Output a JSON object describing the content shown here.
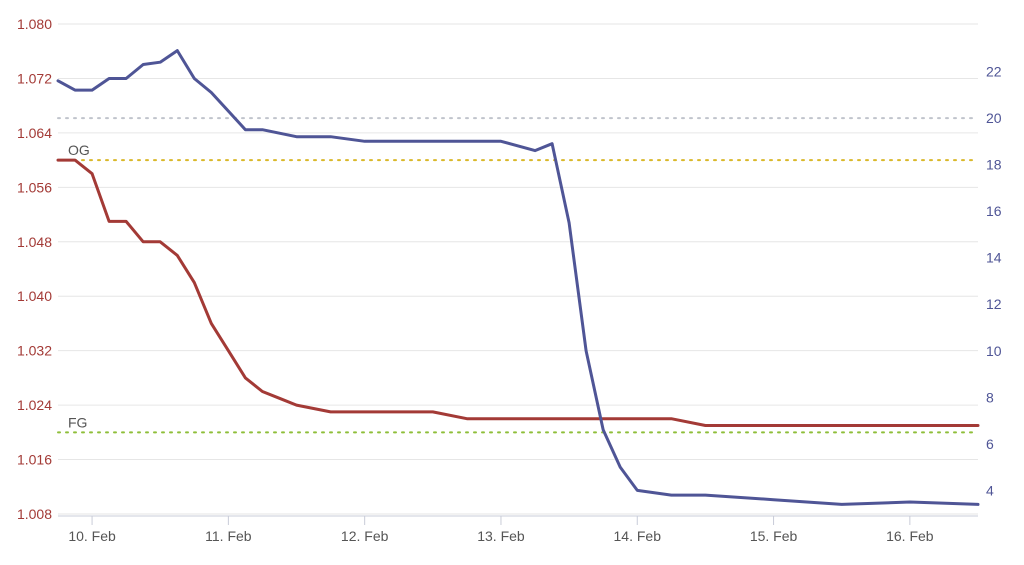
{
  "chart_data": {
    "type": "line",
    "title": "",
    "xlabel": "",
    "ylabel_left": "",
    "ylabel_right": "",
    "x_domain_days": [
      "2024-02-09T18:00",
      "2024-02-16T12:00"
    ],
    "x_tick_labels": [
      "10. Feb",
      "11. Feb",
      "12. Feb",
      "13. Feb",
      "14. Feb",
      "15. Feb",
      "16. Feb"
    ],
    "y_left": {
      "range": [
        1.008,
        1.08
      ],
      "ticks": [
        "1.080",
        "1.072",
        "1.064",
        "1.056",
        "1.048",
        "1.040",
        "1.032",
        "1.024",
        "1.016",
        "1.008"
      ],
      "color": "#a33a36"
    },
    "y_right": {
      "range": [
        2.9,
        24.3
      ],
      "ticks": [
        "22",
        "20",
        "18",
        "16",
        "14",
        "12",
        "10",
        "8",
        "6",
        "4"
      ],
      "color": "#4f5596"
    },
    "grid": true,
    "reference_lines": [
      {
        "label": "OG",
        "axis": "left",
        "value": 1.06,
        "color": "#d9b82a"
      },
      {
        "label": "FG",
        "axis": "left",
        "value": 1.02,
        "color": "#8fbf3a"
      },
      {
        "label": "",
        "axis": "right",
        "value": 20,
        "color": "#c0c4cc"
      }
    ],
    "series": [
      {
        "axis": "left",
        "color": "#a33a36",
        "points": [
          [
            "2024-02-09T18:00",
            1.06
          ],
          [
            "2024-02-09T21:00",
            1.06
          ],
          [
            "2024-02-10T00:00",
            1.058
          ],
          [
            "2024-02-10T03:00",
            1.051
          ],
          [
            "2024-02-10T06:00",
            1.051
          ],
          [
            "2024-02-10T09:00",
            1.048
          ],
          [
            "2024-02-10T12:00",
            1.048
          ],
          [
            "2024-02-10T15:00",
            1.046
          ],
          [
            "2024-02-10T18:00",
            1.042
          ],
          [
            "2024-02-10T21:00",
            1.036
          ],
          [
            "2024-02-11T00:00",
            1.032
          ],
          [
            "2024-02-11T03:00",
            1.028
          ],
          [
            "2024-02-11T06:00",
            1.026
          ],
          [
            "2024-02-11T09:00",
            1.025
          ],
          [
            "2024-02-11T12:00",
            1.024
          ],
          [
            "2024-02-11T18:00",
            1.023
          ],
          [
            "2024-02-12T00:00",
            1.023
          ],
          [
            "2024-02-12T06:00",
            1.023
          ],
          [
            "2024-02-12T12:00",
            1.023
          ],
          [
            "2024-02-12T18:00",
            1.022
          ],
          [
            "2024-02-13T00:00",
            1.022
          ],
          [
            "2024-02-13T12:00",
            1.022
          ],
          [
            "2024-02-14T00:00",
            1.022
          ],
          [
            "2024-02-14T06:00",
            1.022
          ],
          [
            "2024-02-14T12:00",
            1.021
          ],
          [
            "2024-02-15T00:00",
            1.021
          ],
          [
            "2024-02-15T12:00",
            1.021
          ],
          [
            "2024-02-16T00:00",
            1.021
          ],
          [
            "2024-02-16T12:00",
            1.021
          ]
        ]
      },
      {
        "axis": "right",
        "color": "#4f5596",
        "points": [
          [
            "2024-02-09T18:00",
            21.6
          ],
          [
            "2024-02-09T21:00",
            21.2
          ],
          [
            "2024-02-10T00:00",
            21.2
          ],
          [
            "2024-02-10T03:00",
            21.7
          ],
          [
            "2024-02-10T06:00",
            21.7
          ],
          [
            "2024-02-10T09:00",
            22.3
          ],
          [
            "2024-02-10T12:00",
            22.4
          ],
          [
            "2024-02-10T15:00",
            22.9
          ],
          [
            "2024-02-10T18:00",
            21.7
          ],
          [
            "2024-02-10T21:00",
            21.1
          ],
          [
            "2024-02-11T00:00",
            20.3
          ],
          [
            "2024-02-11T03:00",
            19.5
          ],
          [
            "2024-02-11T06:00",
            19.5
          ],
          [
            "2024-02-11T12:00",
            19.2
          ],
          [
            "2024-02-11T18:00",
            19.2
          ],
          [
            "2024-02-12T00:00",
            19.0
          ],
          [
            "2024-02-12T12:00",
            19.0
          ],
          [
            "2024-02-13T00:00",
            19.0
          ],
          [
            "2024-02-13T06:00",
            18.6
          ],
          [
            "2024-02-13T09:00",
            18.9
          ],
          [
            "2024-02-13T12:00",
            15.5
          ],
          [
            "2024-02-13T15:00",
            10.0
          ],
          [
            "2024-02-13T18:00",
            6.6
          ],
          [
            "2024-02-13T21:00",
            5.0
          ],
          [
            "2024-02-14T00:00",
            4.0
          ],
          [
            "2024-02-14T06:00",
            3.8
          ],
          [
            "2024-02-14T12:00",
            3.8
          ],
          [
            "2024-02-15T00:00",
            3.6
          ],
          [
            "2024-02-15T12:00",
            3.4
          ],
          [
            "2024-02-16T00:00",
            3.5
          ],
          [
            "2024-02-16T12:00",
            3.4
          ]
        ]
      }
    ]
  }
}
